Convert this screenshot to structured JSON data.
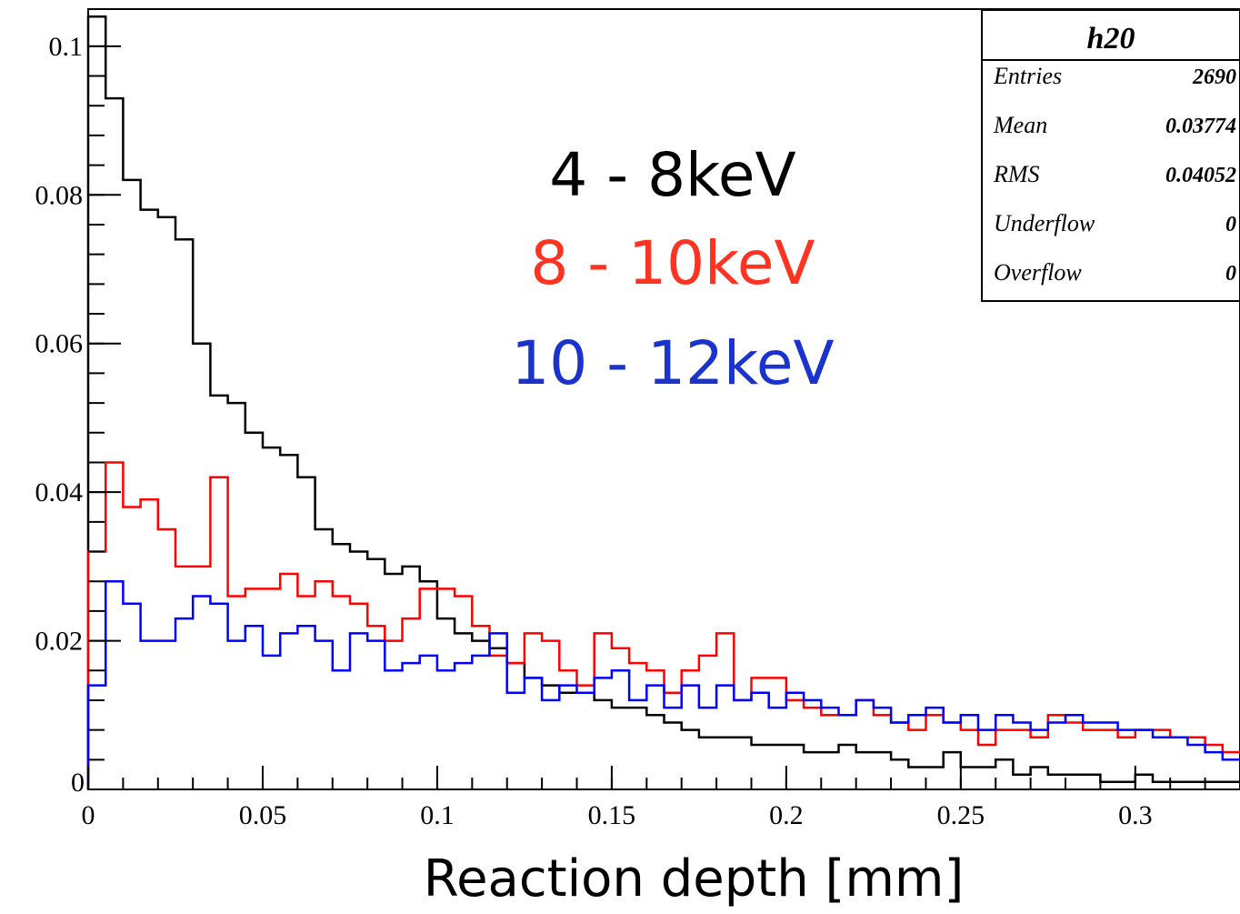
{
  "chart_data": {
    "type": "line",
    "xlabel": "Reaction depth [mm]",
    "ylabel": "",
    "xlim": [
      0,
      0.33
    ],
    "ylim": [
      0,
      0.105
    ],
    "bin_width": 0.005,
    "grid": false,
    "x_ticks": [
      "0",
      "0.05",
      "0.1",
      "0.15",
      "0.2",
      "0.25",
      "0.3"
    ],
    "x_tick_values": [
      0,
      0.05,
      0.1,
      0.15,
      0.2,
      0.25,
      0.3
    ],
    "y_ticks": [
      "0",
      "0.02",
      "0.04",
      "0.06",
      "0.08",
      "0.1"
    ],
    "y_tick_values": [
      0,
      0.02,
      0.04,
      0.06,
      0.08,
      0.1
    ],
    "series": [
      {
        "name": "4 - 8keV",
        "color": "#000000",
        "values": [
          0.104,
          0.093,
          0.082,
          0.078,
          0.077,
          0.074,
          0.06,
          0.053,
          0.052,
          0.048,
          0.046,
          0.045,
          0.042,
          0.035,
          0.033,
          0.032,
          0.031,
          0.029,
          0.03,
          0.028,
          0.023,
          0.021,
          0.02,
          0.019,
          0.017,
          0.015,
          0.014,
          0.013,
          0.013,
          0.012,
          0.011,
          0.011,
          0.01,
          0.009,
          0.008,
          0.007,
          0.007,
          0.007,
          0.006,
          0.006,
          0.006,
          0.005,
          0.005,
          0.006,
          0.005,
          0.005,
          0.004,
          0.003,
          0.003,
          0.005,
          0.003,
          0.003,
          0.004,
          0.002,
          0.003,
          0.002,
          0.002,
          0.002,
          0.001,
          0.001,
          0.002,
          0.001,
          0.001,
          0.001,
          0.001,
          0.001
        ]
      },
      {
        "name": "8 - 10keV",
        "color": "#ff0000",
        "values": [
          0.032,
          0.044,
          0.038,
          0.039,
          0.035,
          0.03,
          0.03,
          0.042,
          0.026,
          0.027,
          0.027,
          0.029,
          0.026,
          0.028,
          0.026,
          0.025,
          0.022,
          0.02,
          0.023,
          0.027,
          0.027,
          0.026,
          0.022,
          0.018,
          0.017,
          0.021,
          0.02,
          0.016,
          0.014,
          0.021,
          0.019,
          0.017,
          0.016,
          0.013,
          0.016,
          0.018,
          0.021,
          0.012,
          0.015,
          0.015,
          0.012,
          0.011,
          0.01,
          0.01,
          0.012,
          0.01,
          0.009,
          0.008,
          0.01,
          0.009,
          0.008,
          0.006,
          0.008,
          0.008,
          0.007,
          0.01,
          0.009,
          0.008,
          0.008,
          0.007,
          0.008,
          0.008,
          0.007,
          0.007,
          0.006,
          0.005
        ]
      },
      {
        "name": "10 - 12keV",
        "color": "#0000ff",
        "values": [
          0.014,
          0.028,
          0.025,
          0.02,
          0.02,
          0.023,
          0.026,
          0.025,
          0.02,
          0.022,
          0.018,
          0.021,
          0.022,
          0.02,
          0.016,
          0.021,
          0.02,
          0.016,
          0.017,
          0.018,
          0.016,
          0.017,
          0.018,
          0.021,
          0.013,
          0.015,
          0.012,
          0.014,
          0.013,
          0.015,
          0.016,
          0.012,
          0.014,
          0.011,
          0.014,
          0.011,
          0.014,
          0.012,
          0.013,
          0.011,
          0.013,
          0.012,
          0.011,
          0.01,
          0.012,
          0.011,
          0.009,
          0.01,
          0.011,
          0.009,
          0.01,
          0.008,
          0.01,
          0.009,
          0.008,
          0.009,
          0.01,
          0.009,
          0.009,
          0.008,
          0.008,
          0.007,
          0.007,
          0.006,
          0.005,
          0.004
        ]
      }
    ],
    "legend_text": {
      "black": "4 - 8keV",
      "red": "8 - 10keV",
      "blue": "10 - 12keV"
    },
    "stats_box": {
      "title": "h20",
      "rows": [
        {
          "label": "Entries",
          "value": "2690"
        },
        {
          "label": "Mean",
          "value": "0.03774"
        },
        {
          "label": "RMS",
          "value": "0.04052"
        },
        {
          "label": "Underflow",
          "value": "0"
        },
        {
          "label": "Overflow",
          "value": "0"
        }
      ],
      "legend_placement": "top-right"
    }
  }
}
